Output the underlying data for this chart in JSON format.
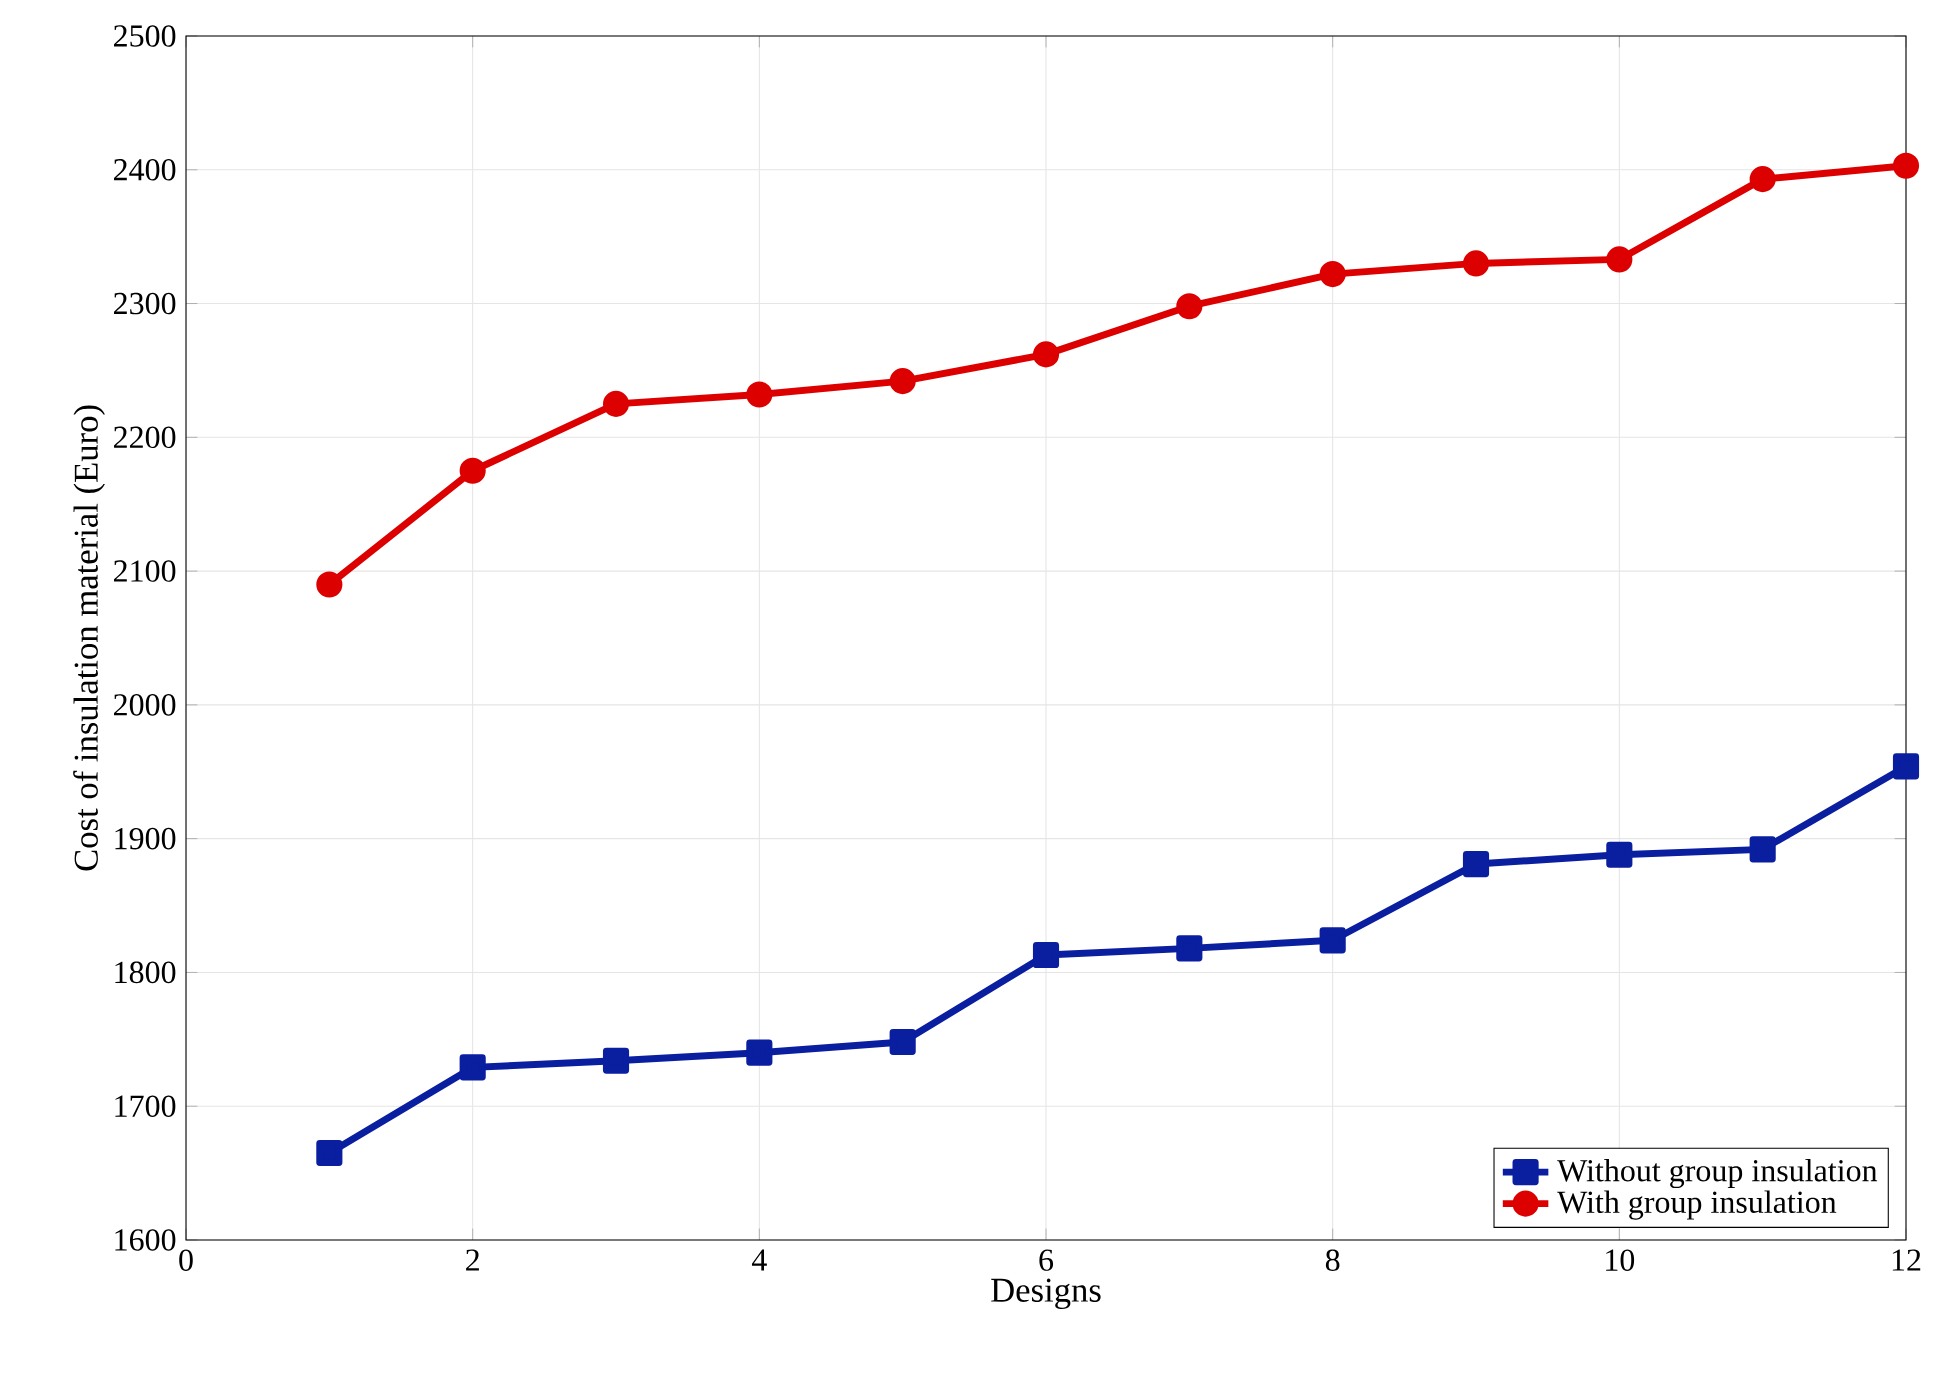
{
  "chart_data": {
    "type": "line",
    "xlabel": "Designs",
    "ylabel": "Cost of insulation material (Euro)",
    "x": [
      1,
      2,
      3,
      4,
      5,
      6,
      7,
      8,
      9,
      10,
      11,
      12
    ],
    "series": [
      {
        "name": "Without group insulation",
        "color": "#0a1ea0",
        "marker": "square",
        "values": [
          1665,
          1729,
          1734,
          1740,
          1748,
          1813,
          1818,
          1824,
          1881,
          1888,
          1892,
          1954
        ]
      },
      {
        "name": "With group insulation",
        "color": "#dd0000",
        "marker": "circle",
        "values": [
          2090,
          2175,
          2225,
          2232,
          2242,
          2262,
          2298,
          2322,
          2330,
          2333,
          2393,
          2403
        ]
      }
    ],
    "xlim": [
      0,
      12
    ],
    "xticks": [
      0,
      2,
      4,
      6,
      8,
      10,
      12
    ],
    "ylim": [
      1600,
      2500
    ],
    "yticks": [
      1600,
      1700,
      1800,
      1900,
      2000,
      2100,
      2200,
      2300,
      2400,
      2500
    ],
    "grid": true,
    "legend": "bottom right",
    "line_style": "solid"
  }
}
